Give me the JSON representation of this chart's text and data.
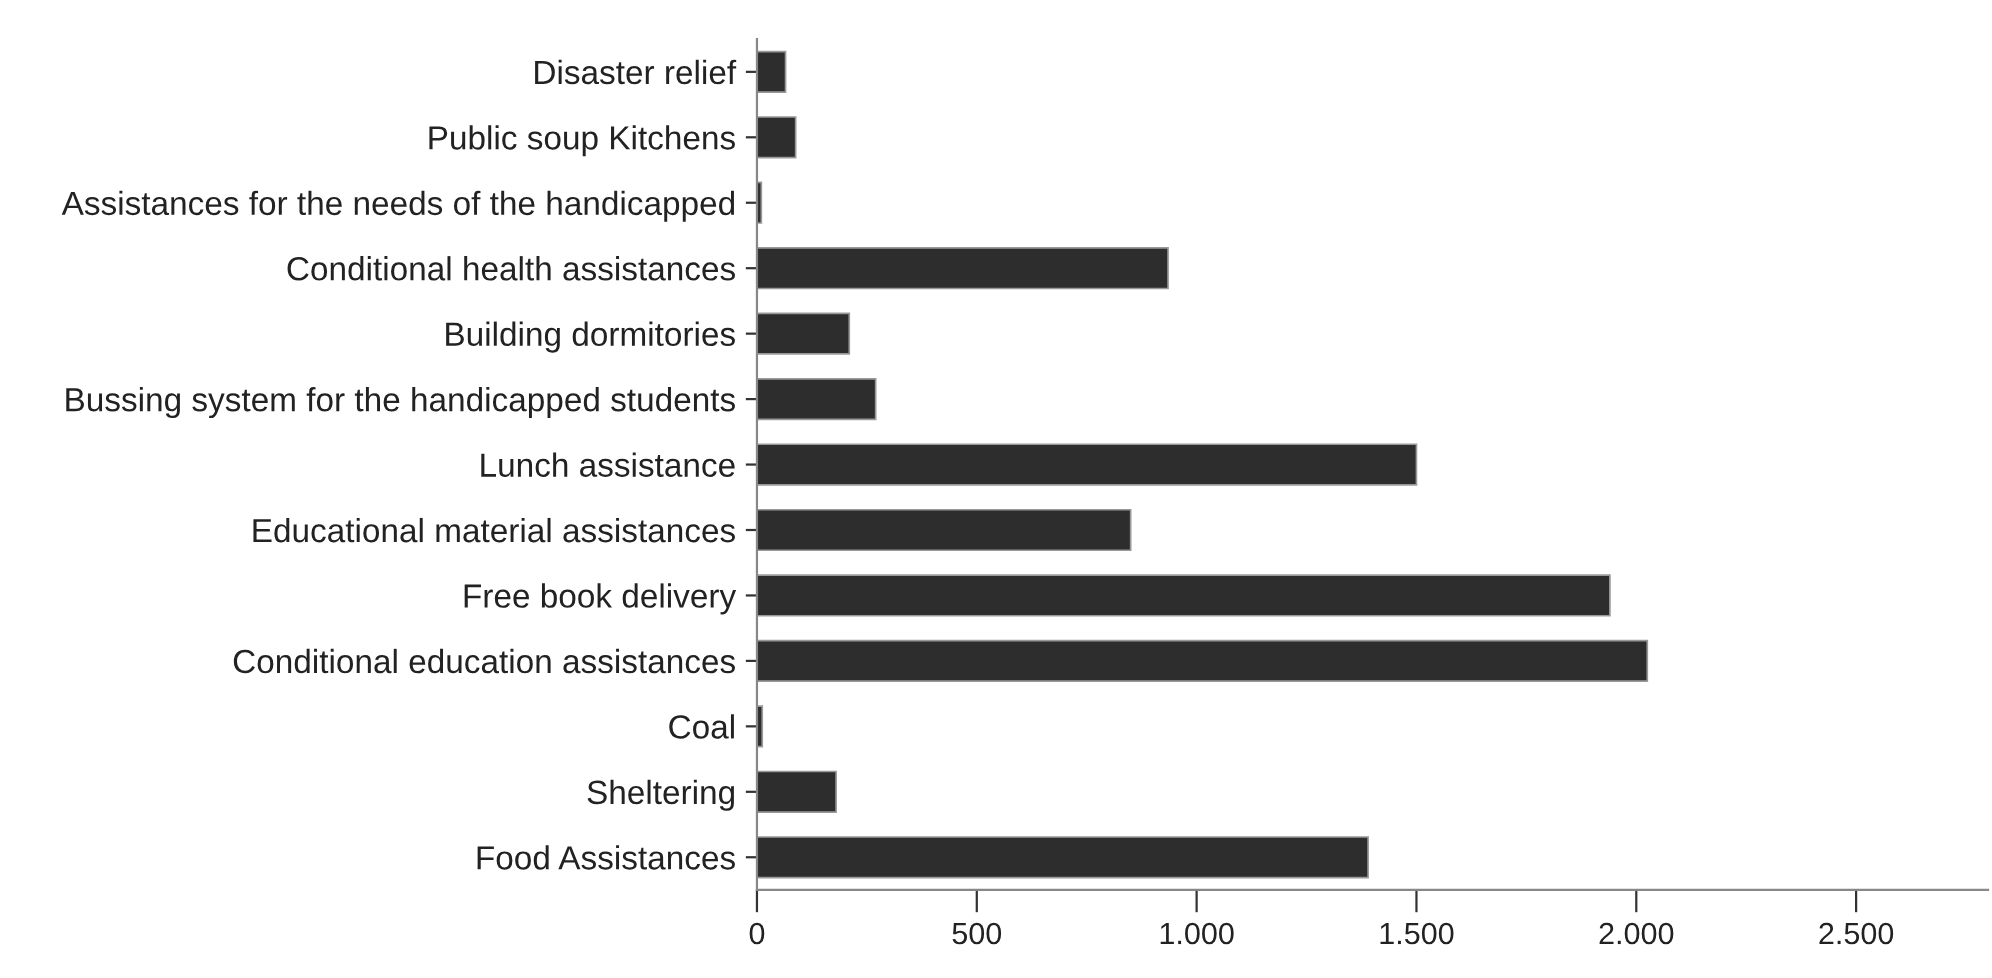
{
  "chart_data": {
    "type": "bar",
    "orientation": "horizontal",
    "categories": [
      "Disaster relief",
      "Public soup Kitchens",
      "Assistances for the needs of the handicapped",
      "Conditional health assistances",
      "Building dormitories",
      "Bussing system for the handicapped students",
      "Lunch assistance",
      "Educational material assistances",
      "Free book delivery",
      "Conditional education assistances",
      "Coal",
      "Sheltering",
      "Food Assistances"
    ],
    "values": [
      65,
      88,
      10,
      935,
      210,
      270,
      1500,
      850,
      1940,
      2025,
      12,
      180,
      1390
    ],
    "color": "#2d2d2d",
    "xlim": [
      0,
      2800
    ],
    "xticks": [
      0,
      500,
      {
        "value": 1000,
        "label": "1.000"
      },
      {
        "value": 1500,
        "label": "1.500"
      },
      {
        "value": 2000,
        "label": "2.000"
      },
      {
        "value": 2500,
        "label": "2.500"
      }
    ],
    "grid": false
  }
}
